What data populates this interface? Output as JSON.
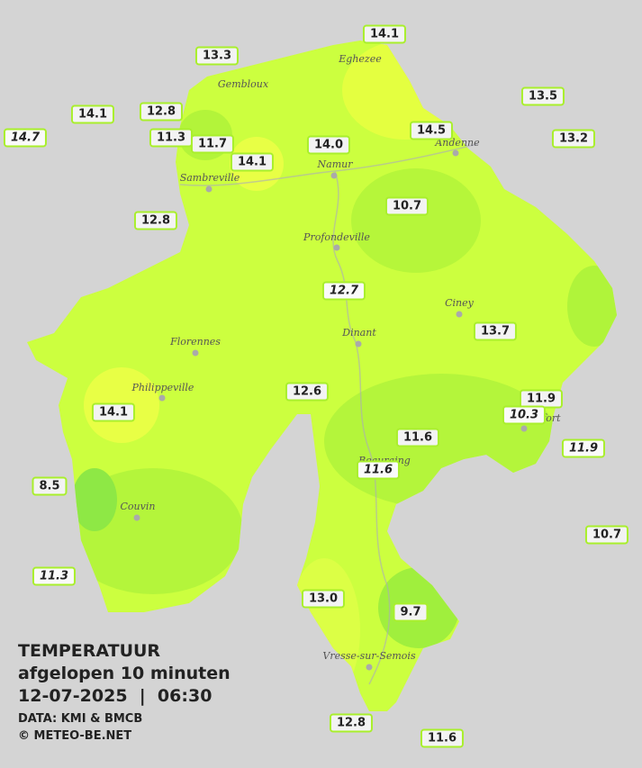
{
  "legend": {
    "title": "TEMPERATUUR",
    "subtitle": "afgelopen 10 minuten",
    "datetime": "12-07-2025  |  06:30",
    "source": "DATA: KMI & BMCB",
    "copyright": "© METEO-BE.NET"
  },
  "cities": [
    "Eghezee",
    "Gembloux",
    "Andenne",
    "Namur",
    "Sambreville",
    "Profondeville",
    "Ciney",
    "Dinant",
    "Florennes",
    "Philippeville",
    "Beauraing",
    "Rochefort",
    "Couvin",
    "Vresse-sur-Semois"
  ],
  "readings": [
    {
      "label": "14.1"
    },
    {
      "label": "13.3"
    },
    {
      "label": "13.5"
    },
    {
      "label": "14.1"
    },
    {
      "label": "12.8"
    },
    {
      "label": "14.7",
      "italic": true
    },
    {
      "label": "11.3"
    },
    {
      "label": "11.7"
    },
    {
      "label": "14.1"
    },
    {
      "label": "14.0"
    },
    {
      "label": "14.5"
    },
    {
      "label": "13.2"
    },
    {
      "label": "10.7"
    },
    {
      "label": "12.8"
    },
    {
      "label": "12.7",
      "italic": true
    },
    {
      "label": "13.7"
    },
    {
      "label": "12.6"
    },
    {
      "label": "11.9"
    },
    {
      "label": "10.3",
      "italic": true
    },
    {
      "label": "14.1"
    },
    {
      "label": "11.6"
    },
    {
      "label": "11.9",
      "italic": true
    },
    {
      "label": "11.6",
      "italic": true
    },
    {
      "label": "8.5"
    },
    {
      "label": "10.7"
    },
    {
      "label": "11.3",
      "italic": true
    },
    {
      "label": "13.0"
    },
    {
      "label": "9.7"
    },
    {
      "label": "12.8"
    },
    {
      "label": "11.6"
    }
  ]
}
